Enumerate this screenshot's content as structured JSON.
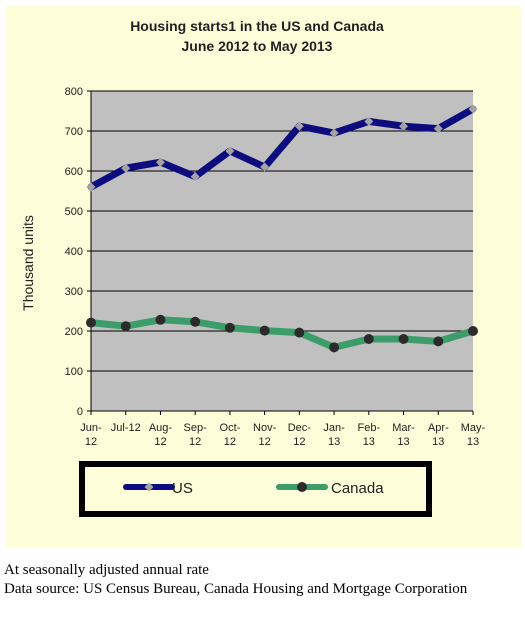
{
  "chart_data": {
    "type": "line",
    "title": "Housing starts1 in the US and Canada",
    "subtitle": "June 2012 to May 2013",
    "ylabel": "Thousand units",
    "xlabel": "",
    "ylim": [
      0,
      800
    ],
    "yticks": [
      0,
      100,
      200,
      300,
      400,
      500,
      600,
      700,
      800
    ],
    "grid": true,
    "legend_position": "bottom",
    "categories": [
      [
        "Jun-",
        "12"
      ],
      [
        "Jul-12"
      ],
      [
        "Aug-",
        "12"
      ],
      [
        "Sep-",
        "12"
      ],
      [
        "Oct-",
        "12"
      ],
      [
        "Nov-",
        "12"
      ],
      [
        "Dec-",
        "12"
      ],
      [
        "Jan-",
        "13"
      ],
      [
        "Feb-",
        "13"
      ],
      [
        "Mar-",
        "13"
      ],
      [
        "Apr-",
        "13"
      ],
      [
        "May-",
        "13"
      ]
    ],
    "series": [
      {
        "name": "US",
        "color": "#0c0c7e",
        "marker_color": "#a3a3a3",
        "values": [
          560,
          607,
          622,
          586,
          650,
          610,
          712,
          695,
          724,
          712,
          706,
          755
        ]
      },
      {
        "name": "Canada",
        "color": "#3c9c6a",
        "marker_color": "#2b2b2b",
        "values": [
          221,
          212,
          228,
          223,
          208,
          201,
          196,
          159,
          180,
          180,
          174,
          200
        ]
      }
    ]
  },
  "notes": {
    "line1": "At seasonally adjusted annual rate",
    "line2": "Data source: US Census Bureau, Canada Housing and Mortgage Corporation"
  },
  "colors": {
    "panel_background": "#fdfdd9",
    "plot_background": "#c0c0c0"
  }
}
